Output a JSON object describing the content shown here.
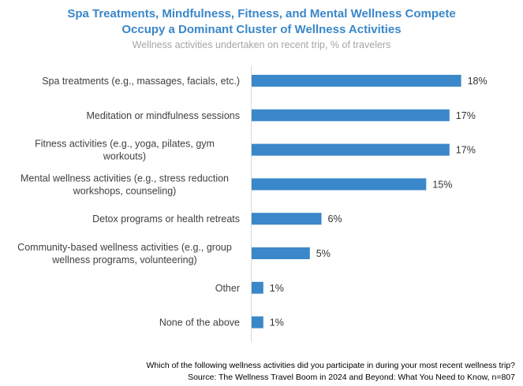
{
  "chart_data": {
    "type": "bar",
    "orientation": "horizontal",
    "title": "Spa Treatments, Mindfulness, Fitness, and Mental Wellness Compete Occupy a Dominant Cluster of Wellness Activities",
    "title_lines": [
      "Spa Treatments, Mindfulness, Fitness, and Mental Wellness Compete",
      "Occupy a Dominant Cluster of Wellness Activities"
    ],
    "subtitle": "Wellness activities undertaken on recent trip, % of travelers",
    "categories": [
      "Spa treatments (e.g., massages, facials, etc.)",
      "Meditation or mindfulness sessions",
      "Fitness activities (e.g., yoga, pilates, gym workouts)",
      "Mental wellness activities (e.g., stress reduction workshops, counseling)",
      "Detox programs or health retreats",
      "Community-based wellness activities (e.g., group wellness programs, volunteering)",
      "Other",
      "None of the above"
    ],
    "category_lines": [
      [
        "Spa treatments (e.g., massages, facials, etc.)"
      ],
      [
        "Meditation or mindfulness sessions"
      ],
      [
        "Fitness activities (e.g., yoga, pilates, gym",
        "workouts)"
      ],
      [
        "Mental wellness activities (e.g., stress reduction",
        "workshops, counseling)"
      ],
      [
        "Detox programs or health retreats"
      ],
      [
        "Community-based wellness activities (e.g., group",
        "wellness programs, volunteering)"
      ],
      [
        "Other"
      ],
      [
        "None of the above"
      ]
    ],
    "values": [
      18,
      17,
      17,
      15,
      6,
      5,
      1,
      1
    ],
    "value_labels": [
      "18%",
      "17%",
      "17%",
      "15%",
      "6%",
      "5%",
      "1%",
      "1%"
    ],
    "unit": "%",
    "xlim": [
      0,
      18.3
    ],
    "grid": false,
    "legend": "none",
    "bar_color": "#3a87c9"
  },
  "footer": {
    "question": "Which of the following wellness activities did you participate in during your most recent wellness trip?",
    "source": "Source: The Wellness Travel Boom in 2024 and Beyond: What You Need to Know, n=807"
  }
}
